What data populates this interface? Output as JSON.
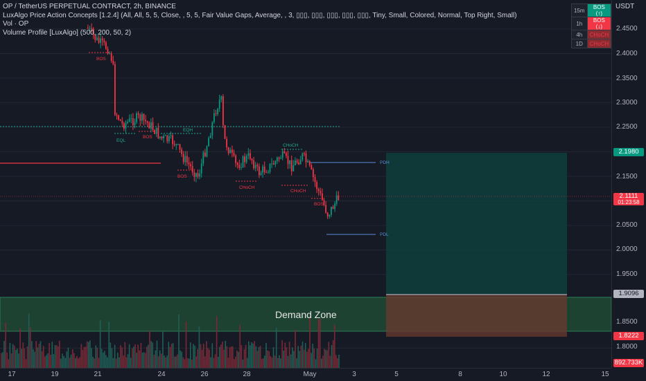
{
  "header": {
    "symbol_line": "OP / TetherUS PERPETUAL CONTRACT, 2h, BINANCE",
    "indicators": [
      "LuxAlgo Price Action Concepts [1.2.4] (All, All, 5, 5, Close, , 5, 5, Fair Value Gaps, Average, , 3, ▯▯▯, ▯▯▯, ▯▯▯, ▯▯▯, ▯▯▯, Tiny, Small, Colored, Normal, Top Right, Small)",
      "Vol · OP",
      "Volume Profile [LuxAlgo] (500, 200, 50, 2)"
    ]
  },
  "mtf_table": [
    {
      "tf": "15m",
      "status": "BOS (↑)",
      "color": "#089981"
    },
    {
      "tf": "1h",
      "status": "BOS (↓)",
      "color": "#f23645"
    },
    {
      "tf": "4h",
      "status": "CHoCH",
      "color": "#f23645"
    },
    {
      "tf": "1D",
      "status": "CHoCH",
      "color": "#f23645"
    }
  ],
  "price_axis": {
    "currency": "USDT",
    "ticks": [
      "2.4500",
      "2.4000",
      "2.3500",
      "2.3000",
      "2.2500",
      "2.2000",
      "2.1500",
      "2.1000",
      "2.0500",
      "2.0000",
      "1.9500",
      "1.9000",
      "1.8500",
      "1.8000"
    ],
    "badges": [
      {
        "value": "2.1980",
        "sub": "",
        "color": "#089981"
      },
      {
        "value": "2.1111",
        "sub": "01:23:58",
        "color": "#f23645"
      },
      {
        "value": "1.9096",
        "sub": "",
        "color": "#b2b5be"
      },
      {
        "value": "1.8222",
        "sub": "",
        "color": "#f23645"
      }
    ],
    "volume_badge": {
      "value": "892.733K",
      "color": "#f23645"
    }
  },
  "time_axis": {
    "ticks": [
      "17",
      "19",
      "21",
      "24",
      "26",
      "28",
      "May",
      "3",
      "5",
      "8",
      "10",
      "12",
      "15"
    ]
  },
  "chart_labels": {
    "demand_zone": "Demand Zone",
    "structure": [
      "BOS",
      "EQL",
      "BOS",
      "BOS",
      "EQH",
      "CHoCH",
      "CHoCH",
      "CHoCH",
      "BOS"
    ],
    "pdh": "PDH",
    "pdl": "PDL"
  },
  "colors": {
    "bull": "#089981",
    "bear": "#f23645",
    "background": "#161a25"
  }
}
